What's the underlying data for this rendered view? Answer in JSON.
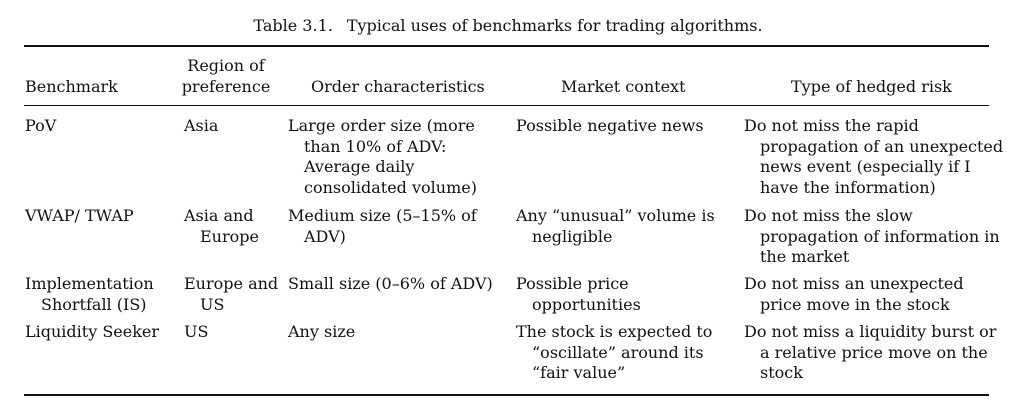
{
  "caption": {
    "number": "Table 3.1.",
    "title": "Typical uses of benchmarks for trading algorithms."
  },
  "headers": [
    "Benchmark",
    "Region of\npreference",
    "Order characteristics",
    "Market context",
    "Type of hedged risk"
  ],
  "rows": [
    [
      "PoV",
      "Asia",
      "Large order size (more than 10% of ADV: Average daily consolidated volume)",
      "Possible negative news",
      "Do not miss the rapid propagation of an unexpected news event (especially if I have the information)"
    ],
    [
      "VWAP/ TWAP",
      "Asia and Europe",
      "Medium size (5–15% of ADV)",
      "Any “unusual” volume is negligible",
      "Do not miss the slow propagation of information in the market"
    ],
    [
      "Implementation Shortfall (IS)",
      "Europe and US",
      "Small size (0–6% of ADV)",
      "Possible price opportunities",
      "Do not miss an unexpected price move in the stock"
    ],
    [
      "Liquidity Seeker",
      "US",
      "Any size",
      "The stock is expected to “oscillate” around its “fair value”",
      "Do not miss a liquidity burst or a relative price move on the stock"
    ]
  ]
}
